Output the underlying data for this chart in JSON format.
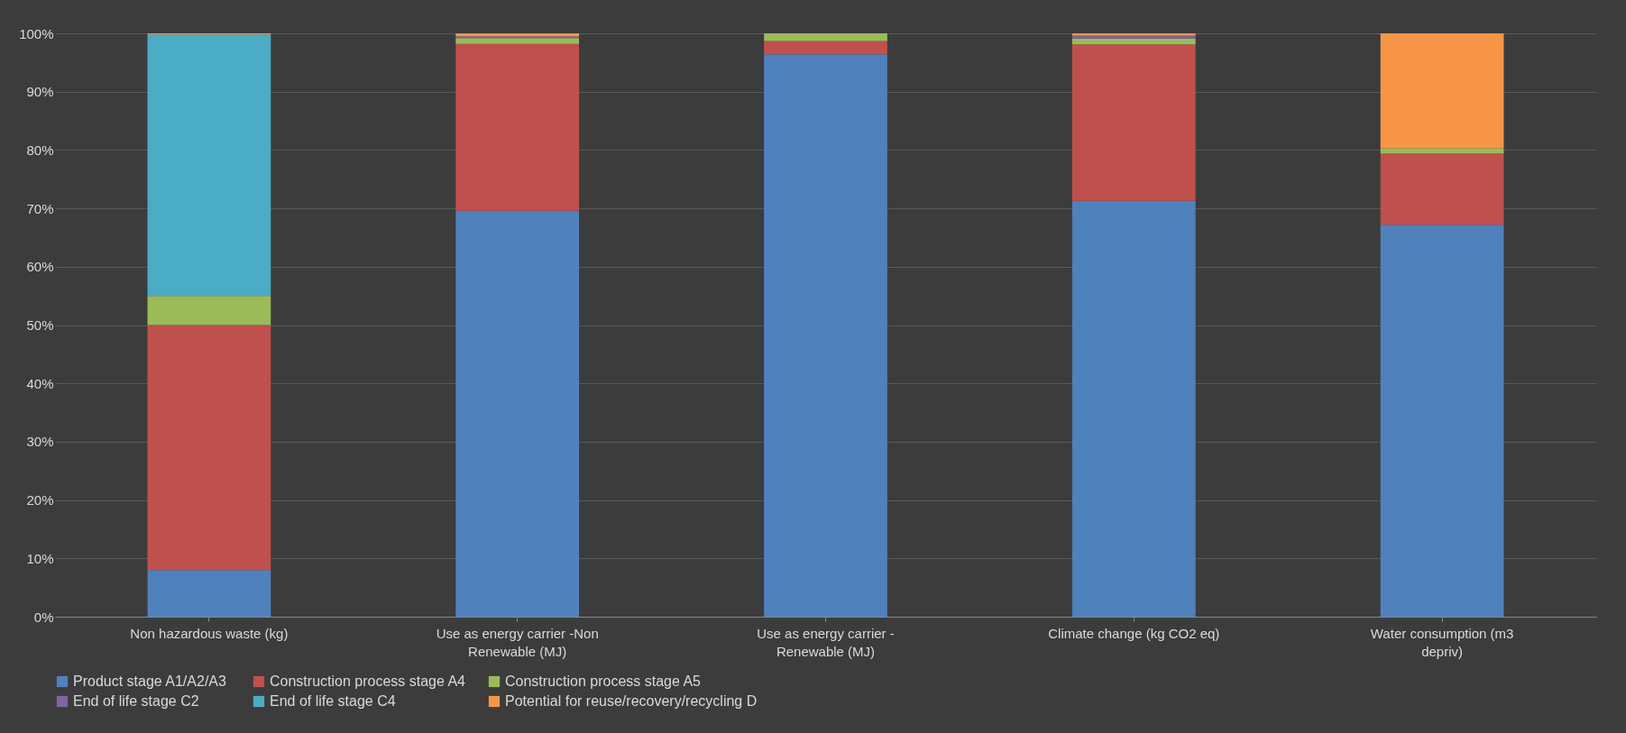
{
  "chart_data": {
    "type": "bar",
    "stacked": true,
    "categories": [
      "Non hazardous waste (kg)",
      "Use as energy carrier -Non Renewable (MJ)",
      "Use as energy carrier - Renewable (MJ)",
      "Climate change (kg CO2 eq)",
      "Water consumption (m3 depriv)"
    ],
    "series": [
      {
        "name": "Product stage   A1/A2/A3",
        "color": "#4f81bd",
        "values": [
          8,
          69.6,
          96.4,
          71.3,
          67.2
        ]
      },
      {
        "name": "Construction process stage  A4",
        "color": "#c0504d",
        "values": [
          42,
          28.6,
          2.3,
          26.8,
          12.2
        ]
      },
      {
        "name": "Construction process stage  A5",
        "color": "#9bbb59",
        "values": [
          5,
          1,
          1.3,
          1,
          0.9
        ]
      },
      {
        "name": "End of life stage C2",
        "color": "#8064a2",
        "values": [
          0,
          0.3,
          0,
          0.5,
          0
        ]
      },
      {
        "name": "End of life stage C4",
        "color": "#4bacc6",
        "values": [
          44.8,
          0,
          0,
          0,
          0
        ]
      },
      {
        "name": "Potential for reuse/recovery/recycling  D",
        "color": "#f79646",
        "values": [
          0.2,
          0.5,
          0,
          0.4,
          19.7
        ]
      }
    ],
    "ylim": [
      0,
      100
    ],
    "yticks": [
      {
        "value": 0,
        "label": "0%"
      },
      {
        "value": 10,
        "label": "10%"
      },
      {
        "value": 20,
        "label": "20%"
      },
      {
        "value": 30,
        "label": "30%"
      },
      {
        "value": 40,
        "label": "40%"
      },
      {
        "value": 50,
        "label": "50%"
      },
      {
        "value": 60,
        "label": "60%"
      },
      {
        "value": 70,
        "label": "70%"
      },
      {
        "value": 80,
        "label": "80%"
      },
      {
        "value": 90,
        "label": "90%"
      },
      {
        "value": 100,
        "label": "100%"
      }
    ],
    "grid": "y",
    "legend": "bottom"
  }
}
